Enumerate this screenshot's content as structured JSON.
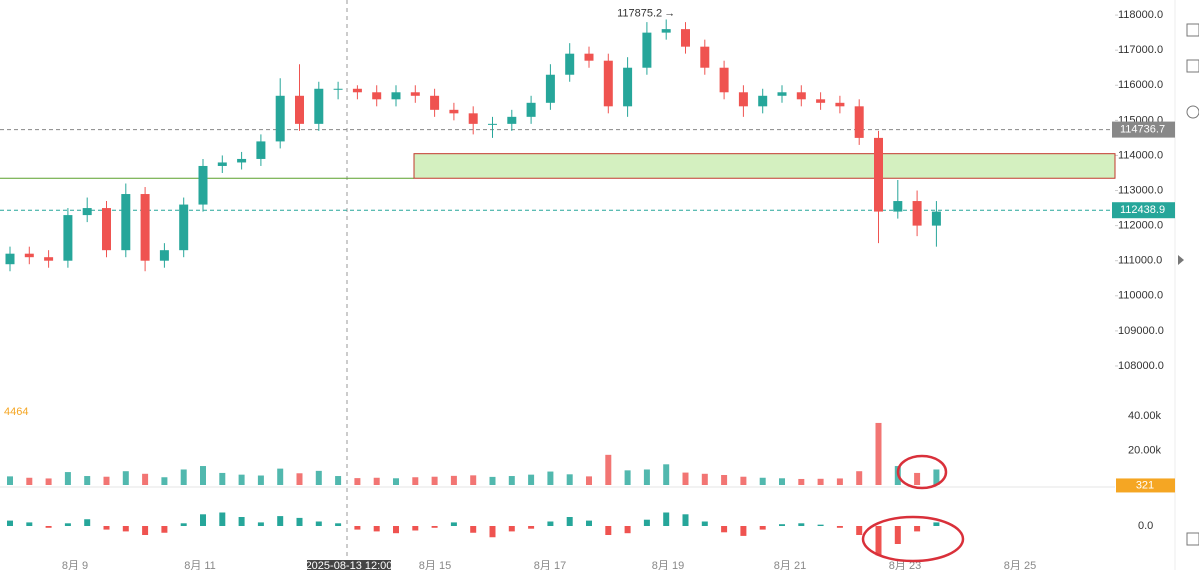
{
  "chart_data": {
    "type": "candlestick",
    "up_color": "#26a69a",
    "down_color": "#ef5350",
    "ylim": [
      107030,
      118430
    ],
    "yticks": [
      {
        "value": 118000,
        "label": "118000.0"
      },
      {
        "value": 117000,
        "label": "117000.0"
      },
      {
        "value": 116000,
        "label": "116000.0"
      },
      {
        "value": 115000,
        "label": "115000.0"
      },
      {
        "value": 114000,
        "label": "114000.0"
      },
      {
        "value": 113000,
        "label": "113000.0"
      },
      {
        "value": 112000,
        "label": "112000.0"
      },
      {
        "value": 111000,
        "label": "111000.0"
      },
      {
        "value": 110000,
        "label": "110000.0"
      },
      {
        "value": 109000,
        "label": "109000.0"
      },
      {
        "value": 108000,
        "label": "108000.0"
      }
    ],
    "x_labels": [
      "8月 9",
      "8月 11",
      "8月 15",
      "8月 17",
      "8月 19",
      "8月 21",
      "8月 23",
      "8月 25"
    ],
    "crosshair_label": "2025-08-13 12:00",
    "open": [
      110900,
      111200,
      111100,
      111000,
      112300,
      112500,
      111300,
      112900,
      111000,
      111300,
      112600,
      113700,
      113800,
      113900,
      114400,
      115700,
      114900,
      115900,
      115900,
      115800,
      115600,
      115800,
      115700,
      115300,
      115200,
      114900,
      114900,
      115100,
      115500,
      116300,
      116900,
      116700,
      115400,
      116500,
      117500,
      117600,
      117100,
      116500,
      115800,
      115400,
      115700,
      115800,
      115600,
      115500,
      115400,
      114500,
      112400,
      112700,
      112000
    ],
    "high": [
      111400,
      111400,
      111300,
      112500,
      112800,
      112700,
      113200,
      113100,
      111500,
      112800,
      113900,
      114000,
      114100,
      114600,
      116200,
      116600,
      116100,
      116100,
      116000,
      116000,
      116000,
      116000,
      115900,
      115500,
      115400,
      115100,
      115300,
      115700,
      116600,
      117200,
      117100,
      116900,
      116800,
      117800,
      117875.2,
      117800,
      117300,
      116700,
      116000,
      115900,
      116000,
      116000,
      115800,
      115700,
      115600,
      114700,
      113300,
      113000,
      112700
    ],
    "low": [
      110700,
      110900,
      110800,
      110800,
      112100,
      111100,
      111100,
      110700,
      110800,
      111100,
      112400,
      113500,
      113600,
      113700,
      114200,
      114700,
      114700,
      115600,
      115600,
      115400,
      115400,
      115500,
      115100,
      115000,
      114600,
      114500,
      114700,
      114900,
      115300,
      116100,
      116500,
      115200,
      115100,
      116300,
      117300,
      116900,
      116300,
      115600,
      115100,
      115200,
      115500,
      115400,
      115300,
      115200,
      114300,
      111500,
      112200,
      111700,
      111400
    ],
    "close": [
      111200,
      111100,
      111000,
      112300,
      112500,
      111300,
      112900,
      111000,
      111300,
      112600,
      113700,
      113800,
      113900,
      114400,
      115700,
      114900,
      115900,
      115900,
      115800,
      115600,
      115800,
      115700,
      115300,
      115200,
      114900,
      114900,
      115100,
      115500,
      116300,
      116900,
      116700,
      115400,
      116500,
      117500,
      117600,
      117100,
      116500,
      115800,
      115400,
      115700,
      115800,
      115600,
      115500,
      115400,
      114500,
      112400,
      112700,
      112000,
      112400
    ],
    "high_annotation": 117875.2,
    "price_lines": [
      {
        "value": 114736.7,
        "color": "#888888"
      },
      {
        "value": 112438.9,
        "color": "#26a69a"
      }
    ],
    "zone": [
      113350,
      114050
    ],
    "support_line": 113350,
    "volume": {
      "ylim": [
        0,
        43500
      ],
      "yticks": [
        {
          "value": 40000,
          "label": "40.00k"
        },
        {
          "value": 20000,
          "label": "20.00k"
        }
      ],
      "values": [
        5000,
        4200,
        3800,
        7500,
        5200,
        4800,
        8000,
        6500,
        4500,
        9000,
        11000,
        7000,
        6000,
        5500,
        9500,
        6800,
        8200,
        5200,
        4000,
        4200,
        3900,
        4500,
        4800,
        5300,
        5600,
        4700,
        5200,
        6000,
        7800,
        6200,
        5000,
        17500,
        8500,
        9000,
        12000,
        7200,
        6500,
        5800,
        4800,
        4200,
        3900,
        3500,
        3600,
        3800,
        8000,
        36000,
        11000,
        7000,
        9000
      ],
      "last": 321,
      "indicator_label": "4464"
    },
    "macd": {
      "ylim": [
        -800,
        800
      ],
      "yticks": [
        {
          "value": 0,
          "label": "0.0"
        }
      ],
      "values": [
        120,
        80,
        -40,
        60,
        150,
        -80,
        -120,
        -200,
        -150,
        60,
        260,
        300,
        200,
        80,
        220,
        180,
        100,
        60,
        -80,
        -120,
        -160,
        -100,
        -40,
        80,
        -150,
        -250,
        -120,
        -60,
        100,
        200,
        120,
        -200,
        -160,
        140,
        300,
        260,
        100,
        -140,
        -220,
        -80,
        40,
        60,
        30,
        -40,
        -200,
        -650,
        -400,
        -120,
        80
      ]
    }
  }
}
